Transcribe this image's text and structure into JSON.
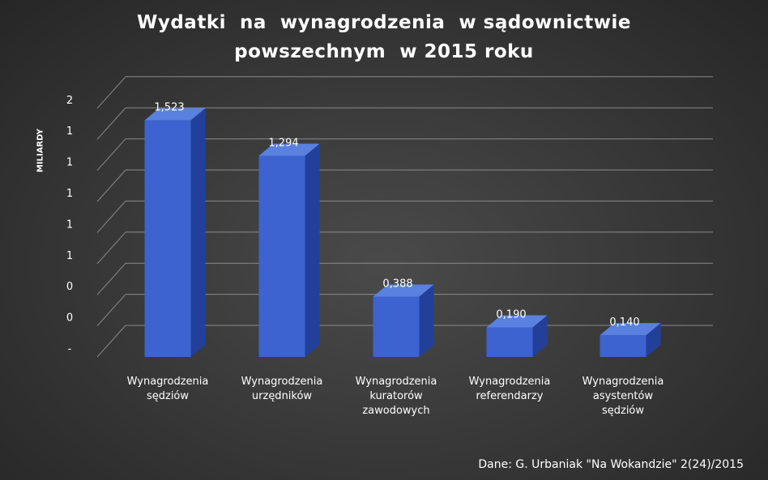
{
  "chart_data": {
    "type": "bar",
    "title_lines": [
      "Wydatki  na  wynagrodzenia  w sądownictwie",
      "powszechnym  w 2015 roku"
    ],
    "ylabel": "MILIARDY",
    "xlabel": "",
    "categories": [
      [
        "Wynagrodzenia",
        "sędziów"
      ],
      [
        "Wynagrodzenia",
        "urzędników"
      ],
      [
        "Wynagrodzenia",
        "kuratorów",
        "zawodowych"
      ],
      [
        "Wynagrodzenia",
        "referendarzy"
      ],
      [
        "Wynagrodzenia",
        "asystentów",
        "sędziów"
      ]
    ],
    "values": [
      1.523,
      1.294,
      0.388,
      0.19,
      0.14
    ],
    "data_labels": [
      "1,523",
      "1,294",
      "0,388",
      "0,190",
      "0,140"
    ],
    "y_ticks": [
      0,
      0.2,
      0.4,
      0.6,
      0.8,
      1.0,
      1.2,
      1.4,
      1.6
    ],
    "y_tick_labels": [
      "-",
      "0",
      "0",
      "1",
      "1",
      "1",
      "1",
      "1",
      "2"
    ],
    "ylim": [
      0,
      1.6
    ],
    "grid": true,
    "legend": "none",
    "bar_color": "#3c63cf",
    "bar_side_color": "#22409a",
    "bar_top_color": "#5a80e0"
  },
  "source": "Dane: G. Urbaniak \"Na Wokandzie\" 2(24)/2015"
}
